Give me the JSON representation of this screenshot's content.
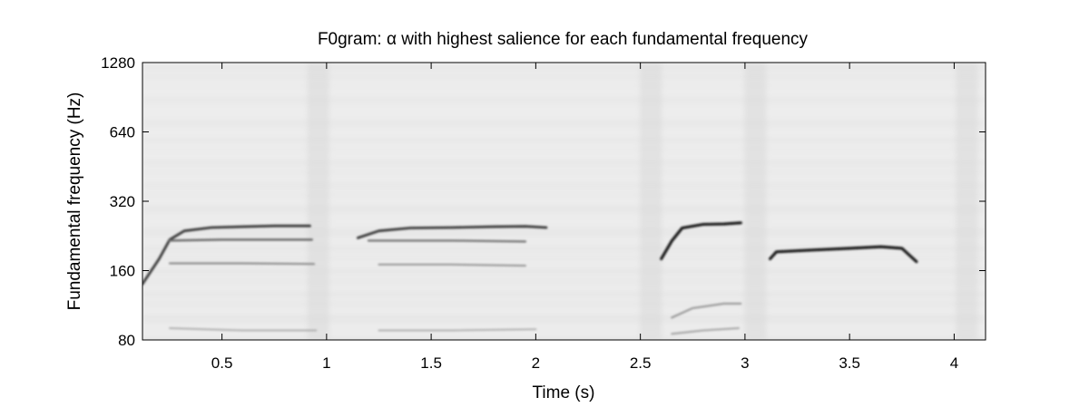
{
  "chart_data": {
    "type": "heatmap",
    "title": "F0gram: α with highest salience for each fundamental frequency",
    "xlabel": "Time (s)",
    "ylabel": "Fundamental frequency (Hz)",
    "x_ticks": [
      "0.5",
      "1",
      "1.5",
      "2",
      "2.5",
      "3",
      "3.5",
      "4"
    ],
    "y_ticks": [
      "80",
      "160",
      "320",
      "640",
      "1280"
    ],
    "xlim": [
      0.12,
      4.15
    ],
    "ylim": [
      80,
      1280
    ],
    "y_scale": "log2",
    "grid": false,
    "colormap": "gray-inverted",
    "contours": [
      {
        "name": "",
        "strength": 0.75,
        "points": [
          [
            0.12,
            140
          ],
          [
            0.2,
            180
          ],
          [
            0.25,
            218
          ],
          [
            0.32,
            238
          ],
          [
            0.45,
            246
          ],
          [
            0.6,
            248
          ],
          [
            0.75,
            250
          ],
          [
            0.92,
            250
          ]
        ]
      },
      {
        "name": "",
        "strength": 0.55,
        "points": [
          [
            0.25,
            216
          ],
          [
            0.5,
            218
          ],
          [
            0.75,
            218
          ],
          [
            0.93,
            218
          ]
        ]
      },
      {
        "name": "",
        "strength": 0.4,
        "points": [
          [
            0.25,
            172
          ],
          [
            0.6,
            172
          ],
          [
            0.94,
            171
          ]
        ]
      },
      {
        "name": "",
        "strength": 0.25,
        "points": [
          [
            0.25,
            90
          ],
          [
            0.6,
            88
          ],
          [
            0.95,
            88
          ]
        ]
      },
      {
        "name": "",
        "strength": 0.75,
        "points": [
          [
            1.15,
            222
          ],
          [
            1.25,
            238
          ],
          [
            1.4,
            245
          ],
          [
            1.6,
            246
          ],
          [
            1.8,
            248
          ],
          [
            1.95,
            249
          ],
          [
            2.05,
            246
          ]
        ]
      },
      {
        "name": "",
        "strength": 0.5,
        "points": [
          [
            1.2,
            216
          ],
          [
            1.6,
            216
          ],
          [
            1.95,
            214
          ]
        ]
      },
      {
        "name": "",
        "strength": 0.35,
        "points": [
          [
            1.25,
            170
          ],
          [
            1.6,
            170
          ],
          [
            1.95,
            168
          ]
        ]
      },
      {
        "name": "",
        "strength": 0.25,
        "points": [
          [
            1.25,
            88
          ],
          [
            1.6,
            88
          ],
          [
            2.0,
            89
          ]
        ]
      },
      {
        "name": "",
        "strength": 0.9,
        "points": [
          [
            2.6,
            180
          ],
          [
            2.65,
            215
          ],
          [
            2.7,
            245
          ],
          [
            2.8,
            254
          ],
          [
            2.9,
            255
          ],
          [
            2.98,
            258
          ]
        ]
      },
      {
        "name": "",
        "strength": 0.35,
        "points": [
          [
            2.65,
            100
          ],
          [
            2.75,
            110
          ],
          [
            2.9,
            115
          ],
          [
            2.98,
            115
          ]
        ]
      },
      {
        "name": "",
        "strength": 0.3,
        "points": [
          [
            2.65,
            85
          ],
          [
            2.8,
            88
          ],
          [
            2.97,
            90
          ]
        ]
      },
      {
        "name": "",
        "strength": 0.9,
        "points": [
          [
            3.12,
            180
          ],
          [
            3.15,
            193
          ],
          [
            3.3,
            196
          ],
          [
            3.5,
            200
          ],
          [
            3.65,
            203
          ],
          [
            3.75,
            200
          ],
          [
            3.82,
            175
          ]
        ]
      }
    ]
  }
}
